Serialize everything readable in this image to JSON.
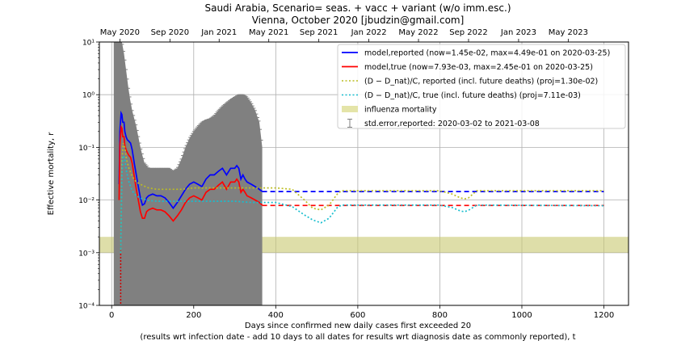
{
  "chart_data": {
    "type": "line",
    "title_line1": "Saudi Arabia, Scenario= seas. + vacc + variant (w/o imm.esc.)",
    "title_line2": "Vienna, October 2020 [jbudzin@gmail.com]",
    "xlabel_line1": "Days since confirmed new daily cases first exceeded 20",
    "xlabel_line2": "(results wrt infection date - add 10 days to all dates for results wrt diagnosis date as commonly reported), t",
    "ylabel": "Effective mortality, r",
    "yscale": "log",
    "xlim": [
      -30,
      1260
    ],
    "ylim": [
      0.0001,
      10
    ],
    "grid": true,
    "legend_position": "top-right",
    "x_ticks": [
      0,
      200,
      400,
      600,
      800,
      1000,
      1200
    ],
    "x_tick_labels": [
      "0",
      "200",
      "400",
      "600",
      "800",
      "1000",
      "1200"
    ],
    "y_ticks": [
      0.0001,
      0.001,
      0.01,
      0.1,
      1,
      10
    ],
    "y_tick_labels": [
      "10⁻⁴",
      "10⁻³",
      "10⁻²",
      "10⁻¹",
      "10⁰",
      "10¹"
    ],
    "top_axis_ticks": [
      20,
      142,
      262,
      383,
      505,
      627,
      748,
      870,
      992,
      1113
    ],
    "top_axis_labels": [
      "May 2020",
      "Sep 2020",
      "Jan 2021",
      "May 2021",
      "Sep 2021",
      "Jan 2022",
      "May 2022",
      "Sep 2022",
      "Jan 2023",
      "May 2023"
    ],
    "influenza_band": [
      0.001,
      0.002
    ],
    "legend": [
      {
        "label": "model,reported (now=1.45e-02, max=4.49e-01 on 2020-03-25)",
        "color": "#0000ff",
        "style": "solid"
      },
      {
        "label": "model,true (now=7.93e-03, max=2.45e-01 on 2020-03-25)",
        "color": "#ff0000",
        "style": "solid"
      },
      {
        "label": "(D − D_nat)/C, reported (incl. future deaths) (proj=1.30e-02)",
        "color": "#bcbd22",
        "style": "dotted"
      },
      {
        "label": "(D − D_nat)/C, true (incl. future deaths) (proj=7.11e-03)",
        "color": "#17becf",
        "style": "dotted"
      },
      {
        "label": "influenza mortality",
        "color": "#e4e4a8",
        "style": "band"
      },
      {
        "label": "std.error,reported: 2020-03-02 to 2021-03-08",
        "color": "#808080",
        "style": "errorbar"
      }
    ],
    "series": [
      {
        "name": "model,reported",
        "color": "#0000ff",
        "x": [
          18,
          20,
          23,
          25,
          27,
          30,
          32,
          35,
          38,
          42,
          46,
          50,
          55,
          60,
          65,
          70,
          75,
          80,
          85,
          90,
          100,
          110,
          120,
          130,
          140,
          150,
          160,
          170,
          180,
          190,
          200,
          210,
          220,
          230,
          240,
          250,
          260,
          270,
          280,
          290,
          300,
          305,
          310,
          315,
          320,
          325,
          330,
          340,
          350,
          360,
          367
        ],
        "y": [
          0.02,
          0.2,
          0.449,
          0.42,
          0.3,
          0.3,
          0.2,
          0.16,
          0.14,
          0.13,
          0.12,
          0.09,
          0.05,
          0.03,
          0.018,
          0.011,
          0.008,
          0.0085,
          0.011,
          0.012,
          0.013,
          0.012,
          0.012,
          0.011,
          0.009,
          0.007,
          0.009,
          0.012,
          0.016,
          0.02,
          0.022,
          0.02,
          0.018,
          0.025,
          0.03,
          0.03,
          0.035,
          0.04,
          0.03,
          0.04,
          0.04,
          0.045,
          0.04,
          0.025,
          0.03,
          0.025,
          0.022,
          0.02,
          0.018,
          0.016,
          0.0145
        ]
      },
      {
        "name": "model,true",
        "color": "#ff0000",
        "x": [
          18,
          20,
          23,
          25,
          27,
          30,
          32,
          35,
          38,
          42,
          46,
          50,
          55,
          60,
          65,
          70,
          75,
          80,
          85,
          90,
          100,
          110,
          120,
          130,
          140,
          150,
          160,
          170,
          180,
          190,
          200,
          210,
          220,
          230,
          240,
          250,
          260,
          270,
          280,
          290,
          300,
          305,
          310,
          315,
          320,
          325,
          330,
          340,
          350,
          360,
          367
        ],
        "y": [
          0.01,
          0.11,
          0.245,
          0.23,
          0.16,
          0.16,
          0.11,
          0.09,
          0.08,
          0.07,
          0.065,
          0.05,
          0.028,
          0.016,
          0.01,
          0.006,
          0.0045,
          0.0045,
          0.006,
          0.0065,
          0.007,
          0.0065,
          0.0065,
          0.006,
          0.005,
          0.004,
          0.005,
          0.0065,
          0.009,
          0.011,
          0.012,
          0.011,
          0.01,
          0.014,
          0.016,
          0.016,
          0.019,
          0.022,
          0.016,
          0.022,
          0.022,
          0.025,
          0.022,
          0.014,
          0.016,
          0.014,
          0.012,
          0.011,
          0.01,
          0.009,
          0.008
        ]
      },
      {
        "name": "model,reported (projection)",
        "color": "#0000ff",
        "dashed": true,
        "x": [
          367,
          1200
        ],
        "y": [
          0.0145,
          0.0145
        ]
      },
      {
        "name": "model,true (projection)",
        "color": "#ff0000",
        "dashed": true,
        "x": [
          367,
          1200
        ],
        "y": [
          0.0079,
          0.0079
        ]
      },
      {
        "name": "(D-Dnat)/C reported",
        "color": "#bcbd22",
        "dotted": true,
        "x": [
          22,
          25,
          28,
          32,
          36,
          42,
          50,
          60,
          75,
          90,
          110,
          140,
          170,
          200,
          230,
          270,
          300,
          340,
          400,
          440,
          470,
          490,
          510,
          530,
          550,
          560,
          700,
          800,
          830,
          850,
          860,
          870,
          890,
          1200
        ],
        "y": [
          0.001,
          0.05,
          0.12,
          0.1,
          0.06,
          0.04,
          0.028,
          0.022,
          0.019,
          0.017,
          0.016,
          0.016,
          0.016,
          0.017,
          0.017,
          0.017,
          0.017,
          0.017,
          0.017,
          0.016,
          0.01,
          0.007,
          0.0065,
          0.008,
          0.013,
          0.015,
          0.015,
          0.015,
          0.013,
          0.011,
          0.0105,
          0.011,
          0.015,
          0.015
        ]
      },
      {
        "name": "(D-Dnat)/C true",
        "color": "#17becf",
        "dotted": true,
        "x": [
          22,
          25,
          28,
          32,
          36,
          42,
          50,
          60,
          75,
          90,
          110,
          140,
          170,
          200,
          230,
          270,
          300,
          340,
          400,
          440,
          470,
          490,
          510,
          530,
          550,
          560,
          700,
          800,
          830,
          850,
          860,
          870,
          890,
          1200
        ],
        "y": [
          0.001,
          0.03,
          0.07,
          0.06,
          0.035,
          0.022,
          0.015,
          0.012,
          0.0105,
          0.0098,
          0.0095,
          0.0095,
          0.0095,
          0.0095,
          0.0095,
          0.0095,
          0.0095,
          0.009,
          0.009,
          0.0075,
          0.0052,
          0.0042,
          0.0037,
          0.0045,
          0.0072,
          0.008,
          0.008,
          0.008,
          0.0072,
          0.0062,
          0.006,
          0.0064,
          0.008,
          0.0078
        ]
      }
    ],
    "error_band": {
      "color": "#808080",
      "x": [
        5,
        15,
        20,
        25,
        30,
        35,
        40,
        45,
        50,
        55,
        60,
        65,
        70,
        75,
        80,
        85,
        90,
        100,
        110,
        120,
        130,
        140,
        150,
        160,
        170,
        180,
        190,
        200,
        210,
        220,
        230,
        240,
        250,
        260,
        270,
        280,
        290,
        300,
        310,
        320,
        330,
        340,
        350,
        360,
        367
      ],
      "upper": [
        10,
        10,
        10,
        10,
        6,
        3,
        1.5,
        0.8,
        0.5,
        0.35,
        0.25,
        0.16,
        0.1,
        0.07,
        0.05,
        0.045,
        0.04,
        0.04,
        0.04,
        0.04,
        0.04,
        0.04,
        0.035,
        0.04,
        0.06,
        0.1,
        0.15,
        0.2,
        0.25,
        0.3,
        0.33,
        0.35,
        0.4,
        0.5,
        0.6,
        0.7,
        0.8,
        0.9,
        1.0,
        1.0,
        0.9,
        0.7,
        0.5,
        0.3,
        0.1
      ],
      "lower": [
        0.0001,
        0.0001,
        0.0001,
        0.0001,
        0.0001,
        0.0001,
        0.0001,
        0.0001,
        0.0001,
        0.0001,
        0.0001,
        0.0001,
        0.0001,
        0.0001,
        0.0001,
        0.0001,
        0.0001,
        0.0001,
        0.0001,
        0.0001,
        0.0001,
        0.0001,
        0.0001,
        0.0001,
        0.0001,
        0.0001,
        0.0001,
        0.0001,
        0.0001,
        0.0001,
        0.0001,
        0.0001,
        0.0001,
        0.0001,
        0.0001,
        0.0001,
        0.0001,
        0.0001,
        0.0001,
        0.0001,
        0.0001,
        0.0001,
        0.0001,
        0.0001,
        0.0001
      ]
    },
    "onset_marker": {
      "x": 22,
      "color": "#cc0000"
    }
  }
}
